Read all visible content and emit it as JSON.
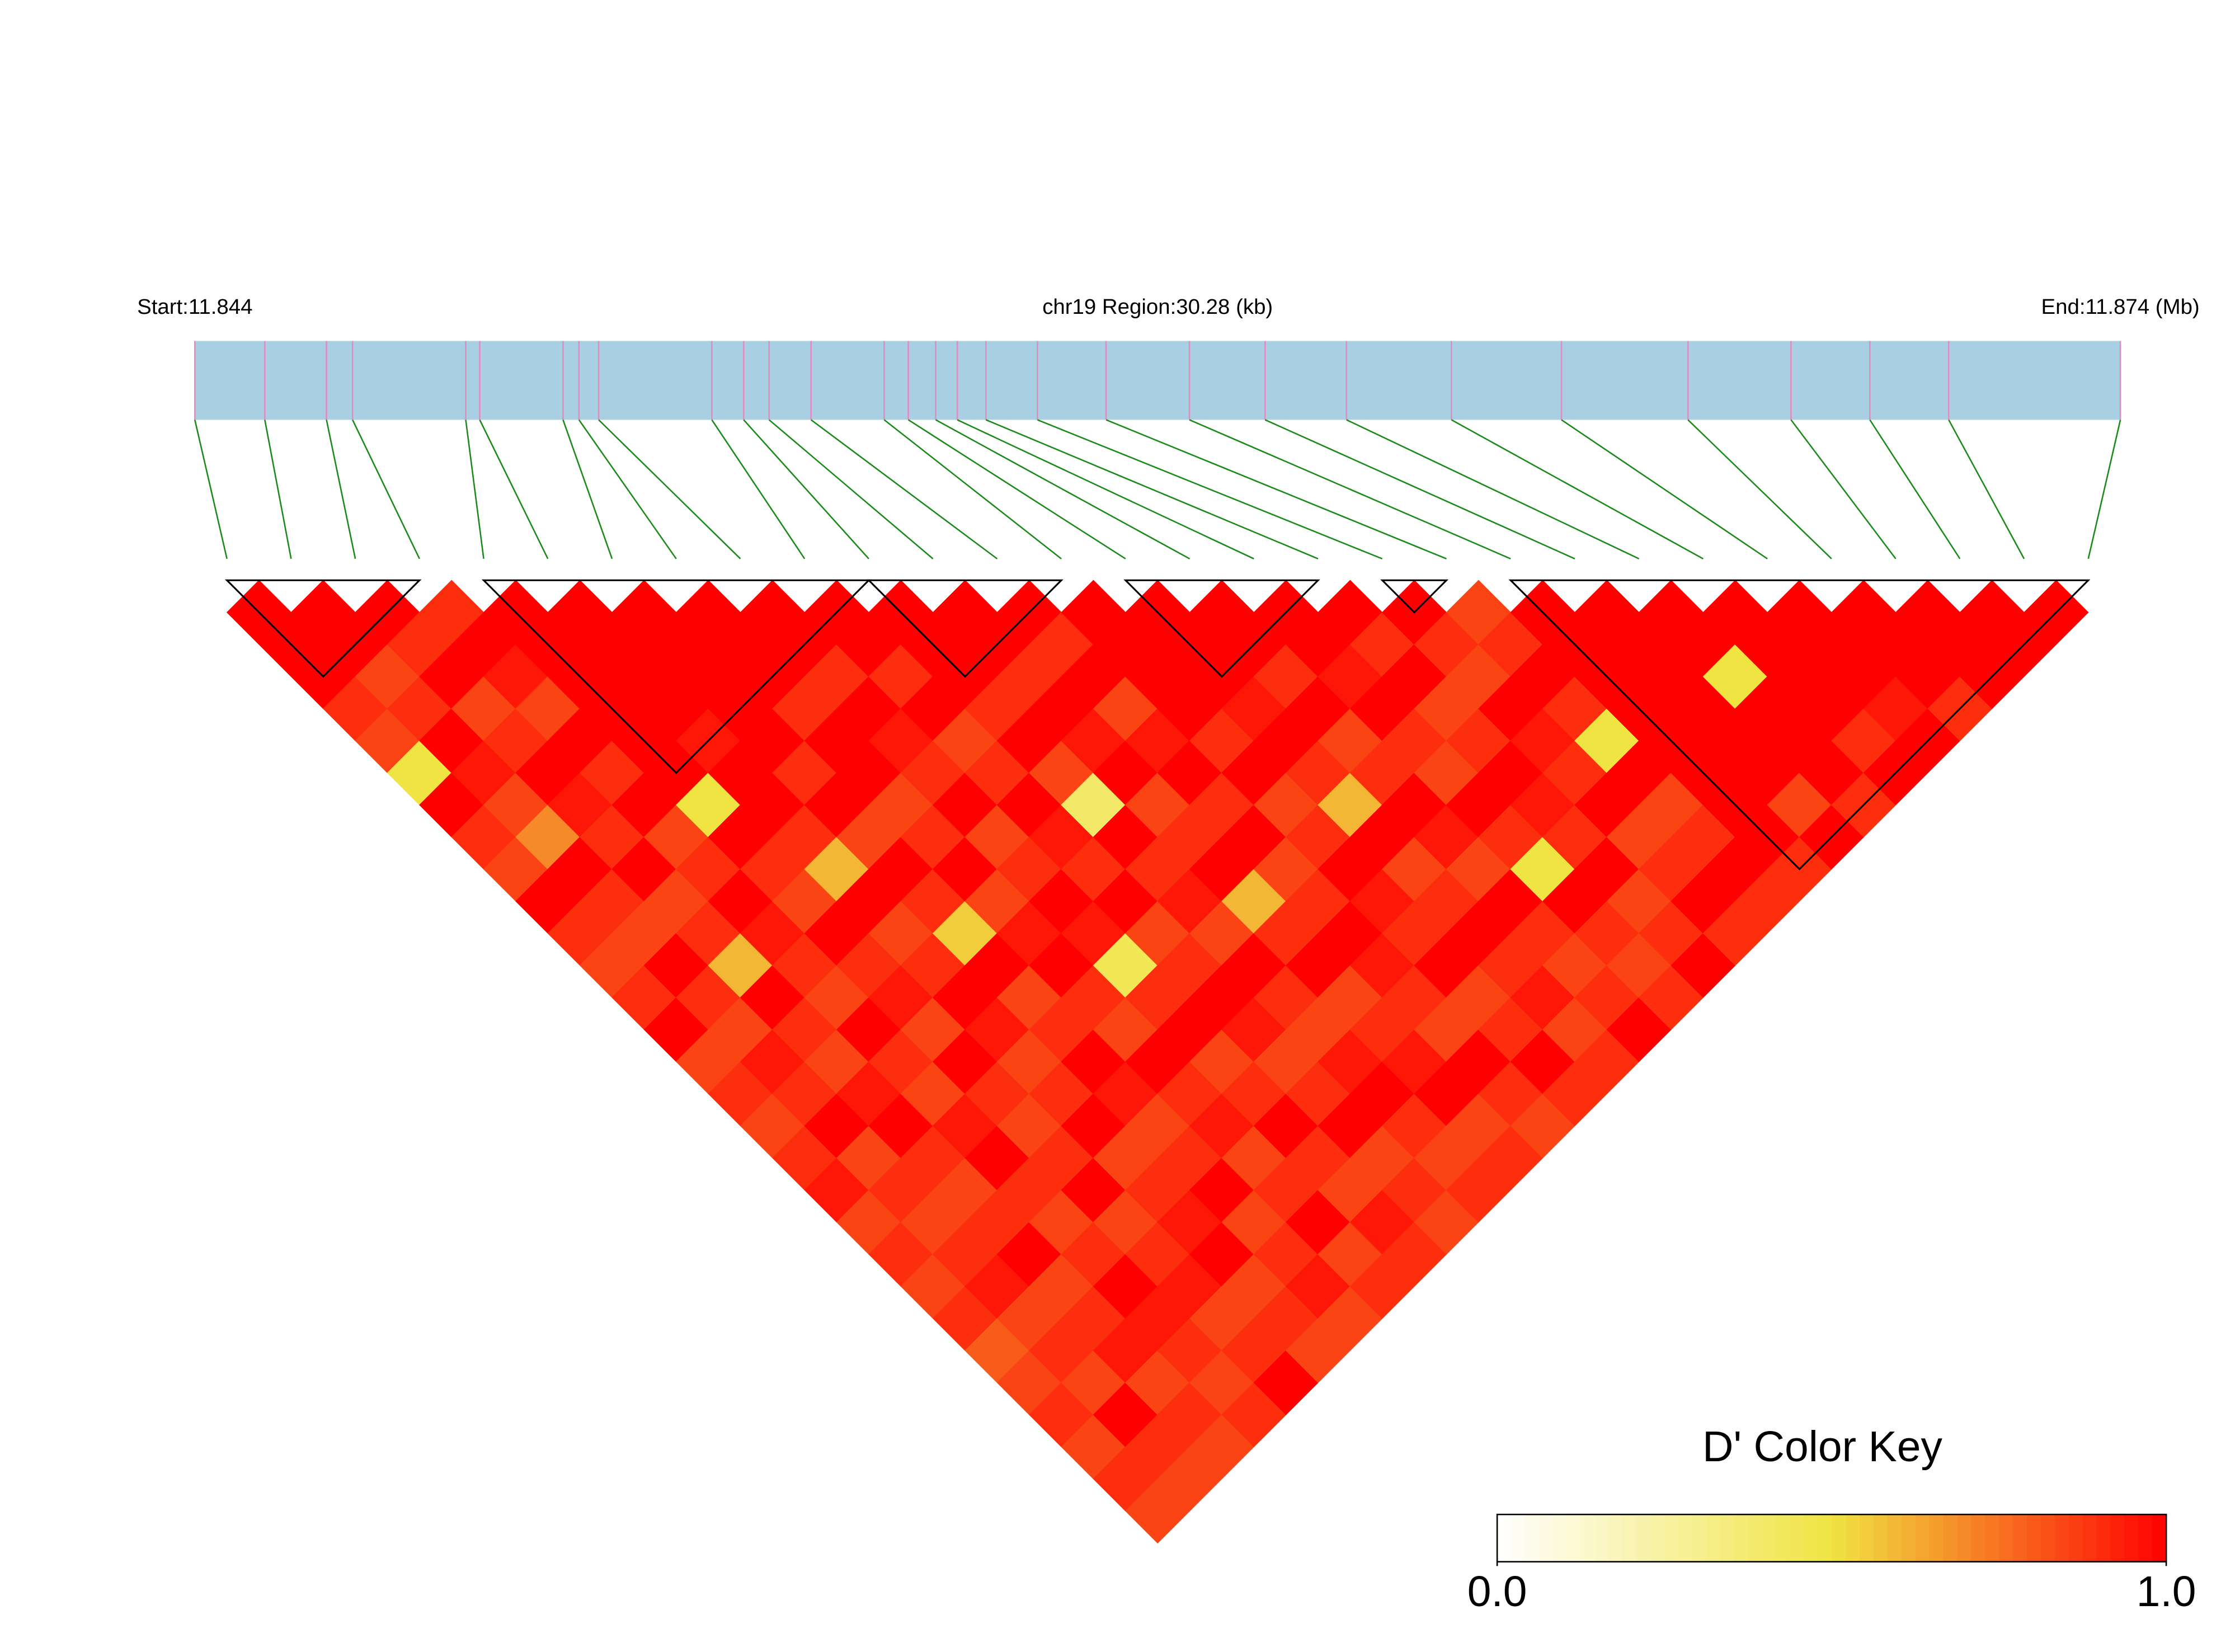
{
  "chart_data": {
    "type": "ld_heatmap",
    "start_label": "Start:11.844",
    "region_label": "chr19 Region:30.28 (kb)",
    "end_label": "End:11.874 (Mb)",
    "xlim": [
      11.844,
      11.87428
    ],
    "snp_positions": [
      11.844,
      11.8451,
      11.84607,
      11.84648,
      11.84826,
      11.84848,
      11.84979,
      11.85004,
      11.85035,
      11.85213,
      11.85263,
      11.85303,
      11.85369,
      11.85484,
      11.85522,
      11.85565,
      11.85599,
      11.85644,
      11.85725,
      11.85833,
      11.85964,
      11.86083,
      11.86211,
      11.86376,
      11.86549,
      11.86748,
      11.8691,
      11.87034,
      11.87158,
      11.87428
    ],
    "ld": [
      [
        1,
        1,
        1,
        0.9,
        0.85,
        0.5,
        1,
        0.9,
        0.85,
        1,
        0.9,
        0.85,
        0.9,
        1,
        0.85,
        0.9,
        0.85,
        0.9,
        0.95,
        0.85,
        0.9,
        0.85,
        0.9,
        0.8,
        0.85,
        0.9,
        0.85,
        0.9,
        0.85
      ],
      [
        1,
        1,
        0.85,
        0.9,
        1,
        0.95,
        0.85,
        0.7,
        1,
        0.9,
        0.85,
        1,
        0.9,
        0.85,
        0.95,
        0.9,
        1,
        0.85,
        0.9,
        0.85,
        0.9,
        0.95,
        0.85,
        0.9,
        0.85,
        1,
        0.9,
        0.85
      ],
      [
        1,
        0.9,
        1,
        0.85,
        0.9,
        1,
        0.95,
        0.9,
        1,
        0.85,
        0.9,
        0.6,
        1,
        0.9,
        0.85,
        0.95,
        1,
        0.9,
        0.85,
        0.9,
        1,
        0.85,
        0.9,
        0.95,
        0.85,
        0.9,
        0.85
      ],
      [
        0.9,
        1,
        0.95,
        0.85,
        1,
        0.9,
        1,
        0.85,
        0.9,
        1,
        0.95,
        0.9,
        0.85,
        1,
        0.9,
        0.85,
        0.95,
        1,
        0.9,
        0.85,
        0.9,
        1,
        0.95,
        0.9,
        0.85,
        0.9
      ],
      [
        1,
        1,
        1,
        1,
        1,
        1,
        0.5,
        1,
        0.9,
        0.85,
        1,
        0.9,
        0.95,
        0.85,
        1,
        0.9,
        0.85,
        0.9,
        1,
        0.85,
        0.9,
        0.95,
        0.85,
        0.9,
        1
      ],
      [
        1,
        1,
        1,
        1,
        0.95,
        1,
        1,
        0.9,
        0.6,
        1,
        0.85,
        0.9,
        1,
        0.95,
        0.85,
        0.9,
        1,
        0.85,
        0.9,
        0.95,
        1,
        0.85,
        0.9,
        0.85
      ],
      [
        1,
        1,
        1,
        1,
        1,
        0.9,
        1,
        0.85,
        1,
        0.9,
        0.55,
        1,
        0.85,
        0.9,
        1,
        0.95,
        0.85,
        0.9,
        1,
        0.85,
        0.9,
        0.95,
        0.85
      ],
      [
        1,
        1,
        1,
        0.9,
        1,
        1,
        0.85,
        0.9,
        1,
        0.85,
        0.95,
        1,
        0.9,
        0.85,
        1,
        0.9,
        0.95,
        0.85,
        0.9,
        1,
        0.85,
        0.9
      ],
      [
        1,
        1,
        0.9,
        1,
        0.95,
        0.9,
        1,
        0.85,
        0.9,
        1,
        0.95,
        0.45,
        0.9,
        1,
        0.85,
        0.9,
        1,
        0.9,
        0.85,
        0.95,
        0.9
      ],
      [
        1,
        1,
        0.9,
        1,
        0.85,
        0.9,
        1,
        0.95,
        0.9,
        1,
        0.85,
        0.9,
        1,
        0.95,
        0.85,
        0.9,
        1,
        0.85,
        0.9,
        0.85
      ],
      [
        1,
        1,
        1,
        0.9,
        1,
        0.85,
        0.4,
        1,
        0.9,
        0.95,
        0.85,
        1,
        0.9,
        0.85,
        0.95,
        1,
        0.9,
        0.85,
        0.9
      ],
      [
        1,
        1,
        0.9,
        1,
        0.95,
        1,
        0.85,
        0.9,
        1,
        0.6,
        0.9,
        1,
        0.85,
        0.9,
        0.95,
        1,
        0.85,
        0.9
      ],
      [
        1,
        0.9,
        1,
        0.85,
        0.95,
        1,
        0.9,
        1,
        0.85,
        0.9,
        1,
        0.95,
        0.9,
        0.85,
        1,
        0.9,
        0.85
      ],
      [
        1,
        1,
        1,
        1,
        0.9,
        1,
        0.85,
        0.9,
        1,
        0.95,
        0.9,
        1,
        0.85,
        0.9,
        1,
        0.9
      ],
      [
        1,
        1,
        1,
        0.95,
        1,
        0.9,
        0.6,
        1,
        0.85,
        0.9,
        1,
        0.9,
        0.95,
        0.85,
        0.9
      ],
      [
        1,
        1,
        0.9,
        1,
        0.85,
        0.9,
        1,
        0.95,
        0.85,
        1,
        0.9,
        0.85,
        0.9,
        1
      ],
      [
        1,
        1,
        0.95,
        1,
        0.9,
        0.85,
        1,
        0.9,
        0.5,
        1,
        0.9,
        0.85,
        0.9
      ],
      [
        1,
        0.9,
        1,
        0.85,
        0.9,
        1,
        0.95,
        0.9,
        1,
        0.85,
        0.9,
        1
      ],
      [
        1,
        0.9,
        0.85,
        1,
        0.95,
        0.9,
        1,
        0.85,
        0.9,
        1,
        0.9
      ],
      [
        0.85,
        0.9,
        1,
        0.9,
        0.5,
        1,
        0.85,
        0.9,
        1,
        0.9
      ],
      [
        1,
        1,
        1,
        1,
        1,
        1,
        1,
        1,
        0.9
      ],
      [
        1,
        1,
        1,
        1,
        1,
        1,
        0.85,
        1
      ],
      [
        1,
        1,
        0.5,
        1,
        1,
        1,
        0.9
      ],
      [
        1,
        1,
        1,
        1,
        0.9,
        1
      ],
      [
        1,
        1,
        1,
        0.95,
        1
      ],
      [
        1,
        1,
        1,
        0.9
      ],
      [
        1,
        1,
        1
      ],
      [
        1,
        1
      ],
      [
        1
      ]
    ],
    "blocks": [
      [
        0,
        3
      ],
      [
        4,
        10
      ],
      [
        10,
        13
      ],
      [
        14,
        17
      ],
      [
        18,
        19
      ],
      [
        20,
        29
      ]
    ],
    "colormap": [
      "#ffffff",
      "#f0e442",
      "#ff0000"
    ],
    "gene_bar_color": "#a8cfe2",
    "snp_tick_color": "#e38bbf",
    "connector_color": "#1a8a1a",
    "colorkey": {
      "title": "D' Color Key",
      "lim": [
        0,
        1
      ],
      "ticks": [
        {
          "value": 0,
          "label": "0.0"
        },
        {
          "value": 1,
          "label": "1.0"
        }
      ]
    }
  }
}
